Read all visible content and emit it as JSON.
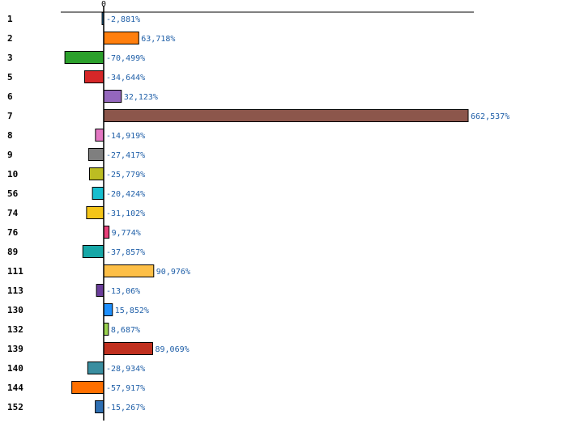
{
  "chart_data": {
    "type": "bar",
    "orientation": "horizontal",
    "categories": [
      "1",
      "2",
      "3",
      "5",
      "6",
      "7",
      "8",
      "9",
      "10",
      "56",
      "74",
      "76",
      "89",
      "111",
      "113",
      "130",
      "132",
      "139",
      "140",
      "144",
      "152"
    ],
    "values": [
      -2.881,
      63.718,
      -70.499,
      -34.644,
      32.123,
      662.537,
      -14.919,
      -27.417,
      -25.779,
      -20.424,
      -31.102,
      9.774,
      -37.857,
      90.976,
      -13.06,
      15.852,
      8.687,
      89.069,
      -28.934,
      -57.917,
      -15.267
    ],
    "value_labels": [
      "-2,881%",
      "63,718%",
      "-70,499%",
      "-34,644%",
      "32,123%",
      "662,537%",
      "-14,919%",
      "-27,417%",
      "-25,779%",
      "-20,424%",
      "-31,102%",
      "9,774%",
      "-37,857%",
      "90,976%",
      "-13,06%",
      "15,852%",
      "8,687%",
      "89,069%",
      "-28,934%",
      "-57,917%",
      "-15,267%"
    ],
    "colors": [
      "#1f77b4",
      "#ff7f0e",
      "#2ca02c",
      "#d62728",
      "#9467bd",
      "#8c564b",
      "#e377c2",
      "#7f7f7f",
      "#bcbd22",
      "#17becf",
      "#f5c518",
      "#e8407a",
      "#17a7a7",
      "#fdbf47",
      "#6a3d9a",
      "#1e90ff",
      "#9ad24f",
      "#c0301f",
      "#3a8ea0",
      "#ff6f00",
      "#2e6fb3"
    ],
    "ticks": [
      {
        "value": 0,
        "label": "0"
      }
    ],
    "xlim": [
      -80,
      670
    ],
    "grid": false,
    "legend": "none",
    "title": "",
    "xlabel": "",
    "ylabel": ""
  }
}
